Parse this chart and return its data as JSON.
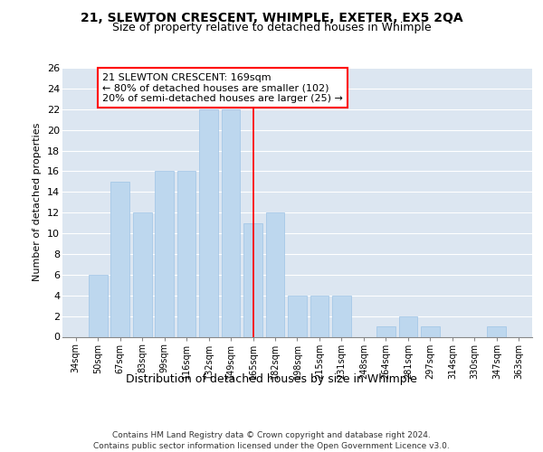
{
  "title": "21, SLEWTON CRESCENT, WHIMPLE, EXETER, EX5 2QA",
  "subtitle": "Size of property relative to detached houses in Whimple",
  "xlabel": "Distribution of detached houses by size in Whimple",
  "ylabel": "Number of detached properties",
  "footer1": "Contains HM Land Registry data © Crown copyright and database right 2024.",
  "footer2": "Contains public sector information licensed under the Open Government Licence v3.0.",
  "categories": [
    "34sqm",
    "50sqm",
    "67sqm",
    "83sqm",
    "99sqm",
    "116sqm",
    "132sqm",
    "149sqm",
    "165sqm",
    "182sqm",
    "198sqm",
    "215sqm",
    "231sqm",
    "248sqm",
    "264sqm",
    "281sqm",
    "297sqm",
    "314sqm",
    "330sqm",
    "347sqm",
    "363sqm"
  ],
  "values": [
    0,
    6,
    15,
    12,
    16,
    16,
    22,
    22,
    11,
    12,
    4,
    4,
    4,
    0,
    1,
    2,
    1,
    0,
    0,
    1,
    0
  ],
  "bar_color": "#bdd7ee",
  "bar_edgecolor": "#9dc3e6",
  "redline_index": 8,
  "redline_label": "21 SLEWTON CRESCENT: 169sqm",
  "annotation_line2": "← 80% of detached houses are smaller (102)",
  "annotation_line3": "20% of semi-detached houses are larger (25) →",
  "annotation_fontsize": 8,
  "ylim": [
    0,
    26
  ],
  "yticks": [
    0,
    2,
    4,
    6,
    8,
    10,
    12,
    14,
    16,
    18,
    20,
    22,
    24,
    26
  ],
  "bg_color": "#dce6f1",
  "grid_color": "#ffffff",
  "title_fontsize": 10,
  "subtitle_fontsize": 9,
  "xlabel_fontsize": 9,
  "ylabel_fontsize": 8
}
